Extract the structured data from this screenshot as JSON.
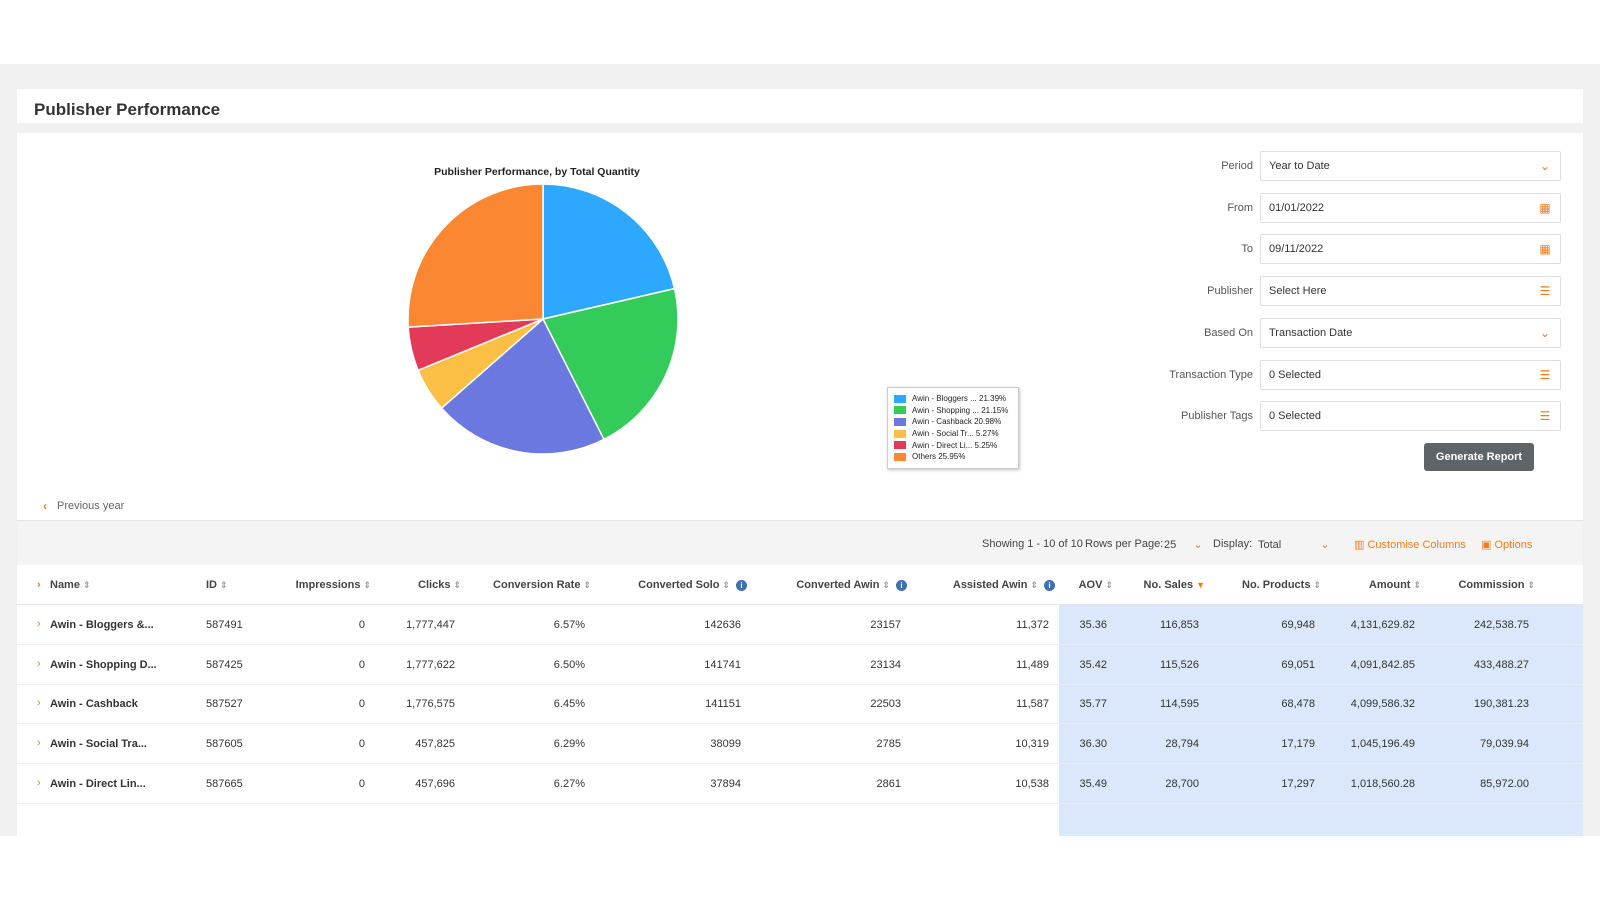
{
  "page": {
    "title": "Publisher Performance"
  },
  "chart_data": {
    "type": "pie",
    "title": "Publisher Performance, by Total Quantity",
    "slices": [
      {
        "label": "Awin - Bloggers ... 21.39%",
        "value": 21.39,
        "color": "#2ea8ff"
      },
      {
        "label": "Awin - Shopping ... 21.15%",
        "value": 21.15,
        "color": "#33cc5a"
      },
      {
        "label": "Awin - Cashback 20.98%",
        "value": 20.98,
        "color": "#6b78e0"
      },
      {
        "label": "Awin - Social Tr... 5.27%",
        "value": 5.27,
        "color": "#fbbf45"
      },
      {
        "label": "Awin - Direct Li... 5.25%",
        "value": 5.25,
        "color": "#e43a5a"
      },
      {
        "label": "Others 25.95%",
        "value": 25.95,
        "color": "#fb8732"
      }
    ],
    "legend_position": "right"
  },
  "filters": [
    {
      "label": "Period",
      "value": "Year to Date",
      "icon": "chevron-down-icon"
    },
    {
      "label": "From",
      "value": "01/01/2022",
      "icon": "calendar-icon"
    },
    {
      "label": "To",
      "value": "09/11/2022",
      "icon": "calendar-icon"
    },
    {
      "label": "Publisher",
      "value": "Select Here",
      "icon": "list-icon"
    },
    {
      "label": "Based On",
      "value": "Transaction Date",
      "icon": "chevron-down-icon"
    },
    {
      "label": "Transaction Type",
      "value": "0 Selected",
      "icon": "list-icon"
    },
    {
      "label": "Publisher Tags",
      "value": "0 Selected",
      "icon": "list-icon"
    }
  ],
  "generate_button": "Generate Report",
  "previous_year": "Previous year",
  "toolbar": {
    "showing": "Showing 1 - 10 of 10",
    "rows_per_page_label": "Rows per Page:",
    "rows_per_page_value": "25",
    "display_label": "Display:",
    "display_value": "Total",
    "customise_columns": "Customise Columns",
    "options": "Options"
  },
  "table": {
    "columns": [
      "Name",
      "ID",
      "Impressions",
      "Clicks",
      "Conversion Rate",
      "Converted Solo",
      "Converted Awin",
      "Assisted Awin",
      "AOV",
      "No. Sales",
      "No. Products",
      "Amount",
      "Commission"
    ],
    "rows": [
      [
        "Awin - Bloggers &...",
        "587491",
        "0",
        "1,777,447",
        "6.57%",
        "142636",
        "23157",
        "11,372",
        "35.36",
        "116,853",
        "69,948",
        "4,131,629.82",
        "242,538.75"
      ],
      [
        "Awin - Shopping D...",
        "587425",
        "0",
        "1,777,622",
        "6.50%",
        "141741",
        "23134",
        "11,489",
        "35.42",
        "115,526",
        "69,051",
        "4,091,842.85",
        "433,488.27"
      ],
      [
        "Awin - Cashback",
        "587527",
        "0",
        "1,776,575",
        "6.45%",
        "141151",
        "22503",
        "11,587",
        "35.77",
        "114,595",
        "68,478",
        "4,099,586.32",
        "190,381.23"
      ],
      [
        "Awin - Social Tra...",
        "587605",
        "0",
        "457,825",
        "6.29%",
        "38099",
        "2785",
        "10,319",
        "36.30",
        "28,794",
        "17,179",
        "1,045,196.49",
        "79,039.94"
      ],
      [
        "Awin - Direct Lin...",
        "587665",
        "0",
        "457,696",
        "6.27%",
        "37894",
        "2861",
        "10,538",
        "35.49",
        "28,700",
        "17,297",
        "1,018,560.28",
        "85,972.00"
      ]
    ]
  }
}
